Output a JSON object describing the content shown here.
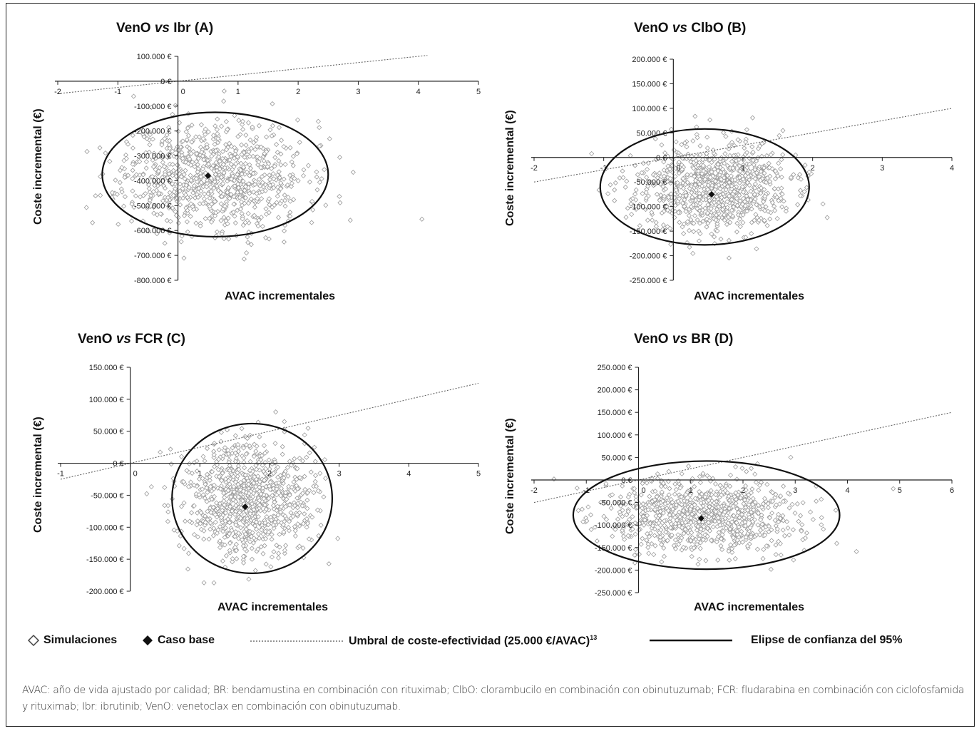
{
  "chart_data": [
    {
      "id": "A",
      "type": "scatter",
      "title_parts": [
        "VenO ",
        "vs",
        " Ibr (A)"
      ],
      "xlabel": "AVAC incrementales",
      "ylabel": "Coste incremental (€)",
      "xlim": [
        -2,
        5
      ],
      "ylim": [
        -800000,
        100000
      ],
      "xticks": [
        -2,
        -1,
        0,
        1,
        2,
        3,
        4,
        5
      ],
      "xtick_labels": [
        "-2",
        "-1",
        "0",
        "1",
        "2",
        "3",
        "4",
        "5"
      ],
      "yticks": [
        100000,
        0,
        -100000,
        -200000,
        -300000,
        -400000,
        -500000,
        -600000,
        -700000,
        -800000
      ],
      "ytick_labels": [
        "100.000 €",
        "0 €",
        "-100.000 €",
        "-200.000 €",
        "-300.000 €",
        "-400.000 €",
        "-500.000 €",
        "-600.000 €",
        "-700.000 €",
        "-800.000 €"
      ],
      "base_case": [
        0.5,
        -380000
      ],
      "ellipse": {
        "cx": 0.62,
        "cy": -375000,
        "rx": 1.88,
        "ry": 250000
      },
      "threshold_x": [
        -2,
        4.15
      ],
      "sim_center": [
        0.6,
        -380000
      ],
      "sim_spread": [
        0.75,
        110000
      ],
      "n_sims": 900,
      "seed": 11
    },
    {
      "id": "B",
      "type": "scatter",
      "title_parts": [
        "VenO ",
        "vs",
        " ClbO (B)"
      ],
      "xlabel": "AVAC incrementales",
      "ylabel": "Coste incremental (€)",
      "xlim": [
        -2,
        4
      ],
      "ylim": [
        -250000,
        200000
      ],
      "xticks": [
        -2,
        -1,
        0,
        1,
        2,
        3,
        4
      ],
      "xtick_labels": [
        "-2",
        "-1",
        "0",
        "1",
        "2",
        "3",
        "4"
      ],
      "yticks": [
        200000,
        150000,
        100000,
        50000,
        0,
        -50000,
        -100000,
        -150000,
        -200000,
        -250000
      ],
      "ytick_labels": [
        "200.000 €",
        "150.000 €",
        "100.000 €",
        "50.000 €",
        "0 €",
        "-50.000 €",
        "-100.000 €",
        "-150.000 €",
        "-200.000 €",
        "-250.000 €"
      ],
      "base_case": [
        0.55,
        -75000
      ],
      "ellipse": {
        "cx": 0.45,
        "cy": -60000,
        "rx": 1.5,
        "ry": 118000
      },
      "threshold_x": [
        -2,
        4
      ],
      "sim_center": [
        0.55,
        -62000
      ],
      "sim_spread": [
        0.55,
        45000
      ],
      "n_sims": 900,
      "seed": 23
    },
    {
      "id": "C",
      "type": "scatter",
      "title_parts": [
        "VenO ",
        "vs",
        " FCR (C)"
      ],
      "xlabel": "AVAC incrementales",
      "ylabel": "Coste incremental (€)",
      "xlim": [
        -1,
        5
      ],
      "ylim": [
        -200000,
        150000
      ],
      "xticks": [
        -1,
        0,
        1,
        2,
        3,
        4,
        5
      ],
      "xtick_labels": [
        "-1",
        "0",
        "1",
        "2",
        "3",
        "4",
        "5"
      ],
      "yticks": [
        150000,
        100000,
        50000,
        0,
        -50000,
        -100000,
        -150000,
        -200000
      ],
      "ytick_labels": [
        "150.000 €",
        "100.000 €",
        "50.000 €",
        "0 €",
        "-50.000 €",
        "-100.000 €",
        "-150.000 €",
        "-200.000 €"
      ],
      "base_case": [
        1.65,
        -68000
      ],
      "ellipse": {
        "cx": 1.75,
        "cy": -55000,
        "rx": 1.15,
        "ry": 117000
      },
      "threshold_x": [
        -1,
        5
      ],
      "sim_center": [
        1.7,
        -55000
      ],
      "sim_spread": [
        0.45,
        45000
      ],
      "n_sims": 900,
      "seed": 37
    },
    {
      "id": "D",
      "type": "scatter",
      "title_parts": [
        "VenO ",
        "vs",
        " BR (D)"
      ],
      "xlabel": "AVAC incrementales",
      "ylabel": "Coste incremental (€)",
      "xlim": [
        -2,
        6
      ],
      "ylim": [
        -250000,
        250000
      ],
      "xticks": [
        -2,
        -1,
        0,
        1,
        2,
        3,
        4,
        5,
        6
      ],
      "xtick_labels": [
        "-2",
        "-1",
        "0",
        "1",
        "2",
        "3",
        "4",
        "5",
        "6"
      ],
      "yticks": [
        250000,
        200000,
        150000,
        100000,
        50000,
        0,
        -50000,
        -100000,
        -150000,
        -200000,
        -250000
      ],
      "ytick_labels": [
        "250.000 €",
        "200.000 €",
        "150.000 €",
        "100.000 €",
        "50.000 €",
        "0 €",
        "-50.000 €",
        "-100.000 €",
        "-150.000 €",
        "-200.000 €",
        "-250.000 €"
      ],
      "base_case": [
        1.2,
        -85000
      ],
      "ellipse": {
        "cx": 1.3,
        "cy": -78000,
        "rx": 2.55,
        "ry": 120000
      },
      "threshold_x": [
        -2,
        6
      ],
      "sim_center": [
        1.25,
        -80000
      ],
      "sim_spread": [
        0.95,
        42000
      ],
      "n_sims": 900,
      "seed": 51
    }
  ],
  "legend": {
    "simulaciones": "Simulaciones",
    "caso_base": "Caso base",
    "umbral": "Umbral de coste-efectividad (25.000 €/AVAC)",
    "umbral_sup": "13",
    "elipse": "Elipse de confianza del 95%"
  },
  "caption": "AVAC: año de vida ajustado por calidad; BR: bendamustina en combinación con rituximab; ClbO: clorambucilo en combinación con obinutuzumab; FCR: fludarabina en combinación con ciclofosfamida y rituximab; Ibr: ibrutinib; VenO: venetoclax en combinación con obinutuzumab.",
  "colors": {
    "sim_marker": "#9a9a9a",
    "base_marker": "#111111",
    "axis": "#222222",
    "threshold": "#666666",
    "ellipse": "#111111"
  }
}
